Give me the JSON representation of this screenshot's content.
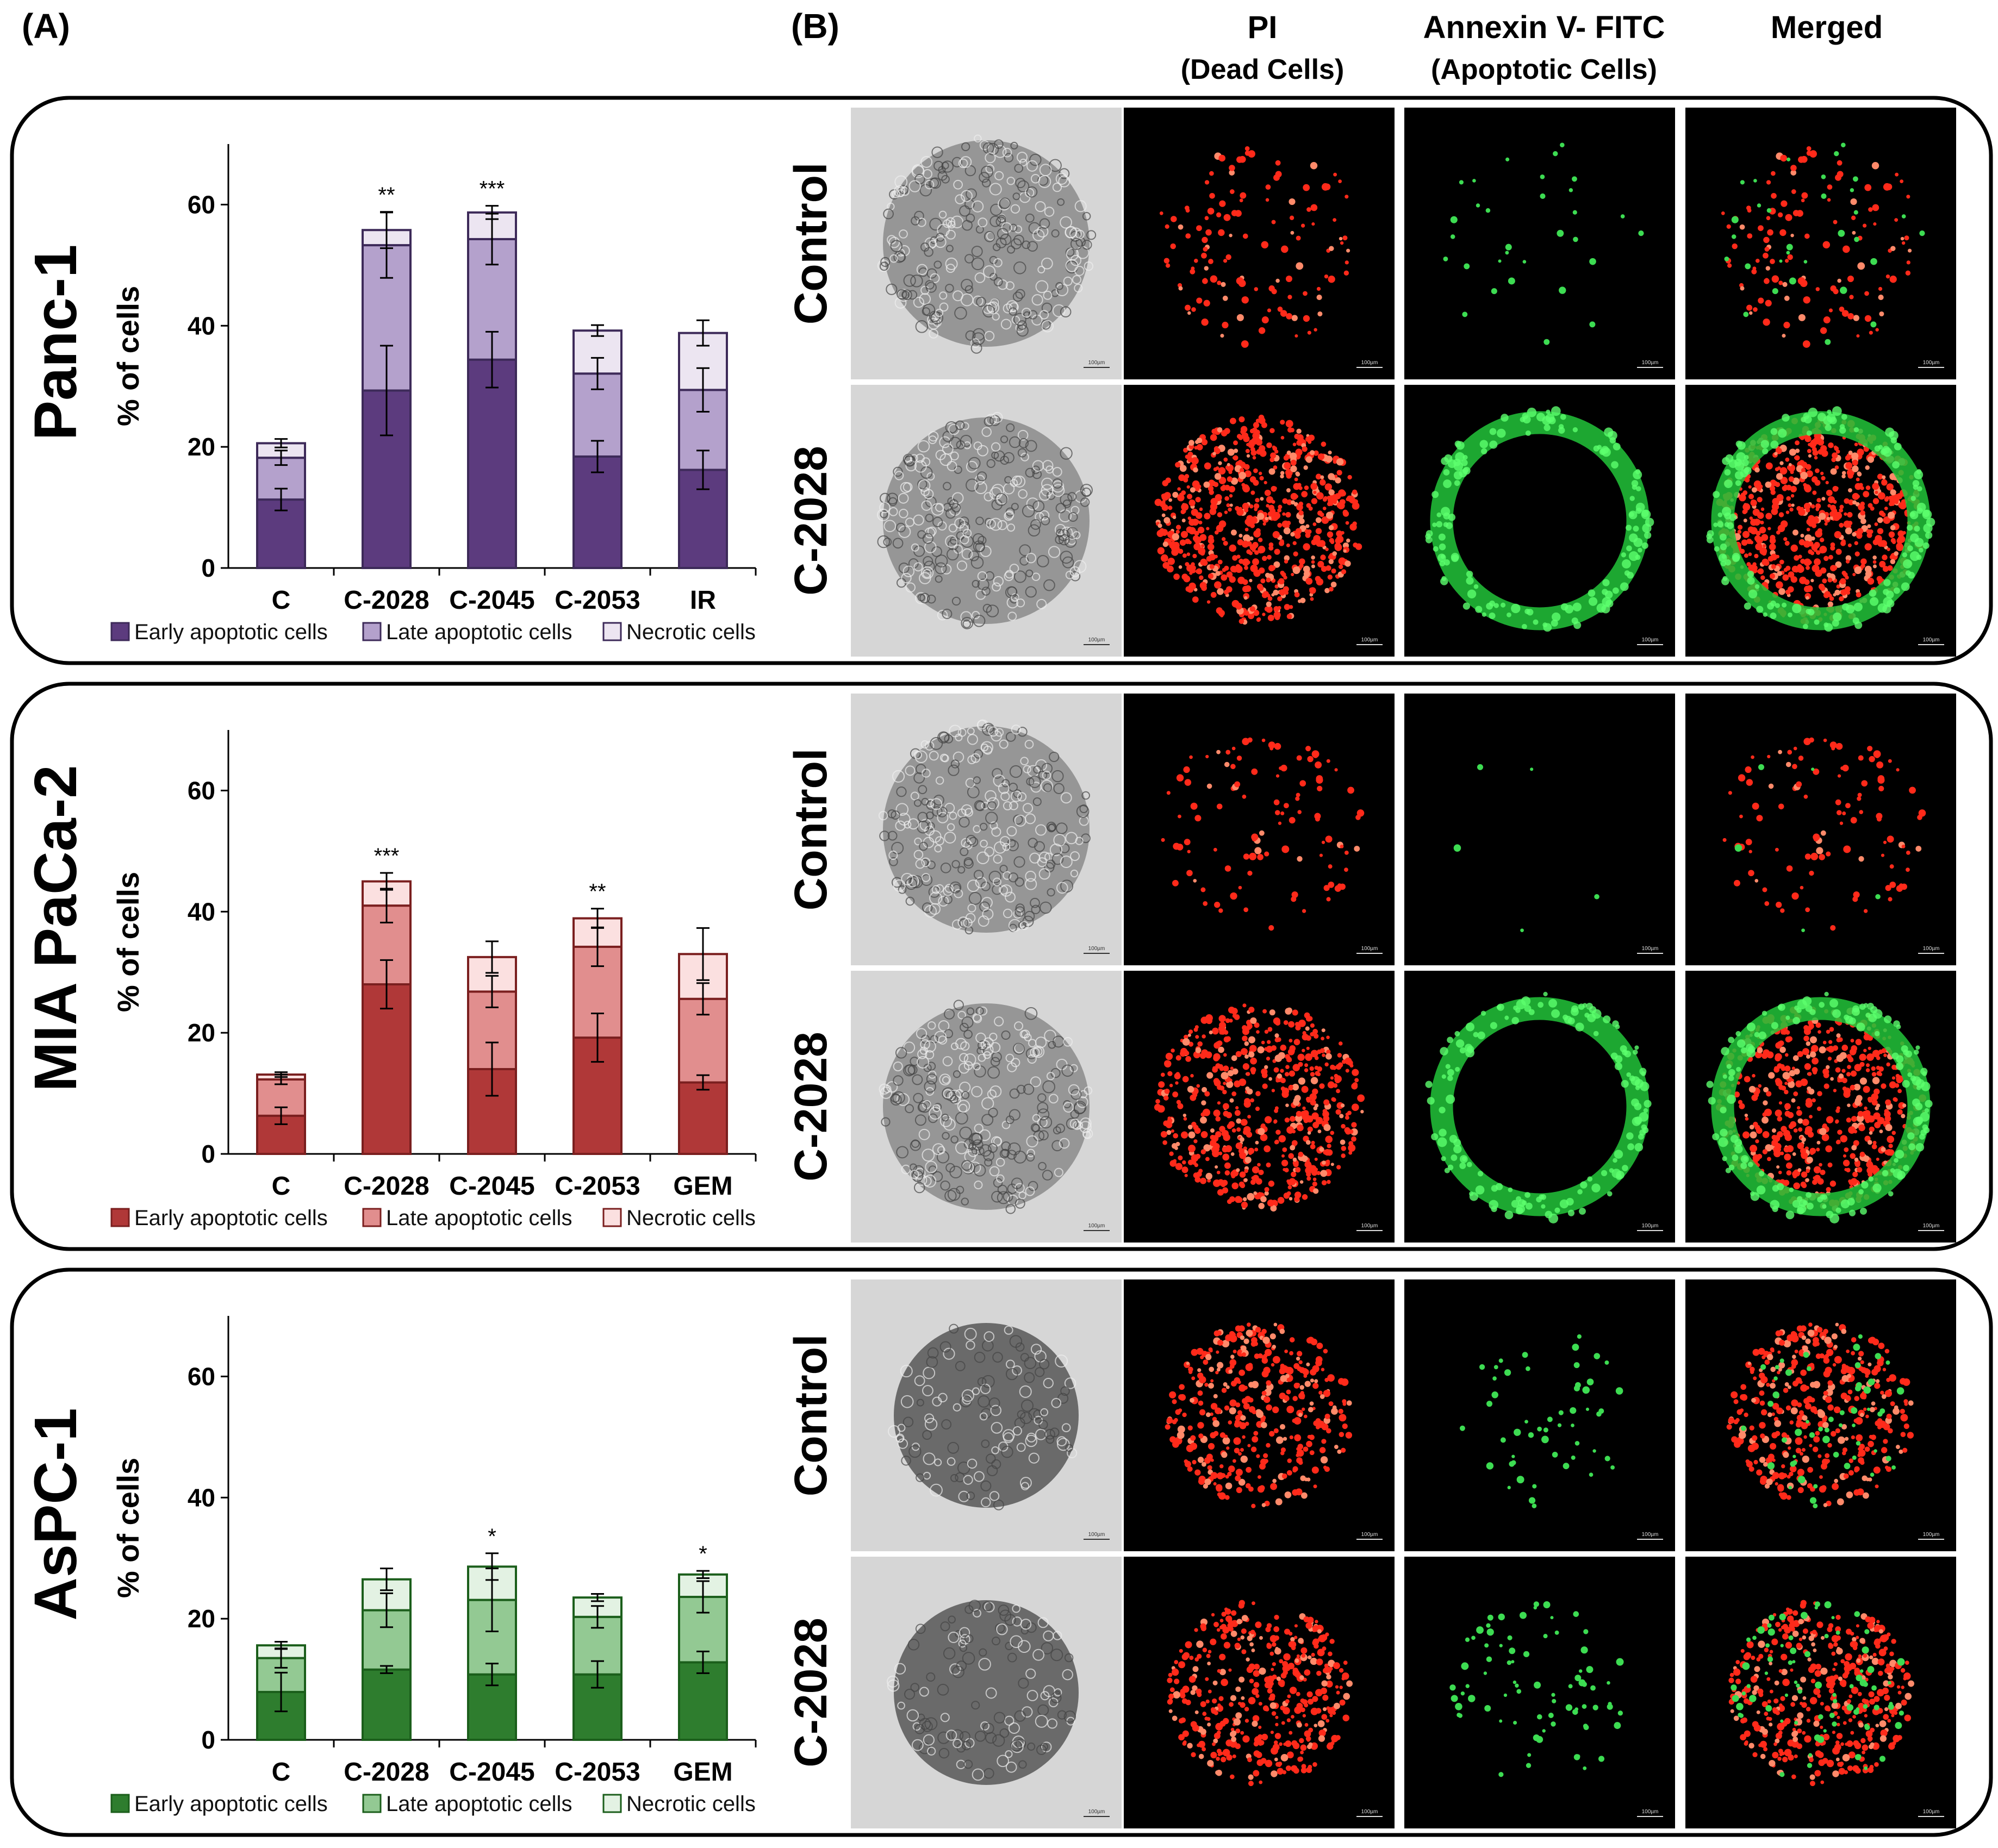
{
  "panel_labels": {
    "a": "(A)",
    "b": "(B)"
  },
  "column_headers": {
    "pi": {
      "title": "PI",
      "subtitle": "(Dead Cells)"
    },
    "annexin": {
      "title": "Annexin V- FITC",
      "subtitle": "(Apoptotic Cells)"
    },
    "merged": {
      "title": "Merged"
    }
  },
  "scale_bar_label": "100µm",
  "chart_data": [
    {
      "type": "bar",
      "stacked": true,
      "cell_line": "Panc-1",
      "title": "Panc-1",
      "ylabel": "% of cells",
      "xlabel": "",
      "ylim": [
        0,
        70
      ],
      "yticks": [
        0,
        20,
        40,
        60
      ],
      "categories": [
        "C",
        "C-2028",
        "C-2045",
        "C-2053",
        "IR"
      ],
      "colors": {
        "early": "#5c3b7e",
        "late": "#b4a1cc",
        "necrotic": "#ece5f1",
        "edge": "#3d2a59"
      },
      "series": [
        {
          "name": "Early apoptotic cells",
          "values": [
            11.3,
            29.3,
            34.4,
            18.4,
            16.2
          ],
          "errors": [
            1.8,
            7.4,
            4.6,
            2.6,
            3.2
          ]
        },
        {
          "name": "Late apoptotic cells",
          "values": [
            6.9,
            24.0,
            19.9,
            13.7,
            13.2
          ],
          "errors": [
            1.2,
            5.4,
            4.2,
            2.6,
            3.6
          ]
        },
        {
          "name": "Necrotic cells",
          "values": [
            2.4,
            2.5,
            4.4,
            7.1,
            9.4
          ],
          "errors": [
            0.7,
            3.0,
            1.1,
            0.9,
            2.1
          ]
        }
      ],
      "significance": [
        "",
        "**",
        "***",
        "",
        ""
      ],
      "legend": "bottom"
    },
    {
      "type": "bar",
      "stacked": true,
      "cell_line": "MIA PaCa-2",
      "title": "MIA PaCa-2",
      "ylabel": "% of cells",
      "xlabel": "",
      "ylim": [
        0,
        70
      ],
      "yticks": [
        0,
        20,
        40,
        60
      ],
      "categories": [
        "C",
        "C-2028",
        "C-2045",
        "C-2053",
        "GEM"
      ],
      "colors": {
        "early": "#b03838",
        "late": "#e18e8e",
        "necrotic": "#fbe0e0",
        "edge": "#7a1f1f"
      },
      "series": [
        {
          "name": "Early apoptotic cells",
          "values": [
            6.3,
            28.0,
            14.0,
            19.2,
            11.8
          ],
          "errors": [
            1.4,
            4.0,
            4.4,
            4.0,
            1.2
          ]
        },
        {
          "name": "Late apoptotic cells",
          "values": [
            6.0,
            13.0,
            12.8,
            15.0,
            13.8
          ],
          "errors": [
            0.8,
            2.8,
            2.6,
            3.2,
            2.6
          ]
        },
        {
          "name": "Necrotic cells",
          "values": [
            0.8,
            4.0,
            5.7,
            4.7,
            7.4
          ],
          "errors": [
            0.4,
            1.4,
            2.6,
            1.6,
            4.3
          ]
        }
      ],
      "significance": [
        "",
        "***",
        "",
        "**",
        ""
      ],
      "legend": "bottom"
    },
    {
      "type": "bar",
      "stacked": true,
      "cell_line": "AsPC-1",
      "title": "AsPC-1",
      "ylabel": "% of cells",
      "xlabel": "",
      "ylim": [
        0,
        70
      ],
      "yticks": [
        0,
        20,
        40,
        60
      ],
      "categories": [
        "C",
        "C-2028",
        "C-2045",
        "C-2053",
        "GEM"
      ],
      "colors": {
        "early": "#2e7d2e",
        "late": "#93c993",
        "necrotic": "#e3f2e3",
        "edge": "#1b5e1b"
      },
      "series": [
        {
          "name": "Early apoptotic cells",
          "values": [
            7.9,
            11.6,
            10.8,
            10.8,
            12.8
          ],
          "errors": [
            3.2,
            0.6,
            1.8,
            2.2,
            1.8
          ]
        },
        {
          "name": "Late apoptotic cells",
          "values": [
            5.6,
            9.8,
            12.3,
            9.5,
            10.8
          ],
          "errors": [
            1.6,
            2.8,
            5.2,
            1.8,
            2.6
          ]
        },
        {
          "name": "Necrotic cells",
          "values": [
            2.1,
            5.1,
            5.5,
            3.2,
            3.7
          ],
          "errors": [
            0.6,
            1.8,
            2.2,
            0.6,
            0.6
          ]
        }
      ],
      "significance": [
        "",
        "",
        "*",
        "",
        "*"
      ],
      "legend": "bottom"
    }
  ],
  "micrographs": [
    {
      "cell_line": "Panc-1",
      "rows": [
        {
          "label": "Control",
          "pi_density": 0.18,
          "annexin_density": 0.12,
          "annexin_ring": false,
          "spheroid": "loose"
        },
        {
          "label": "C-2028",
          "pi_density": 1.0,
          "annexin_density": 0.85,
          "annexin_ring": true,
          "spheroid": "loose"
        }
      ]
    },
    {
      "cell_line": "MIA PaCa-2",
      "rows": [
        {
          "label": "Control",
          "pi_density": 0.15,
          "annexin_density": 0.02,
          "annexin_ring": false,
          "spheroid": "loose"
        },
        {
          "label": "C-2028",
          "pi_density": 0.85,
          "annexin_density": 0.9,
          "annexin_ring": true,
          "spheroid": "loose"
        }
      ]
    },
    {
      "cell_line": "AsPC-1",
      "rows": [
        {
          "label": "Control",
          "pi_density": 0.55,
          "annexin_density": 0.2,
          "annexin_ring": false,
          "spheroid": "compact"
        },
        {
          "label": "C-2028",
          "pi_density": 0.6,
          "annexin_density": 0.3,
          "annexin_ring": false,
          "spheroid": "compact"
        }
      ]
    }
  ]
}
